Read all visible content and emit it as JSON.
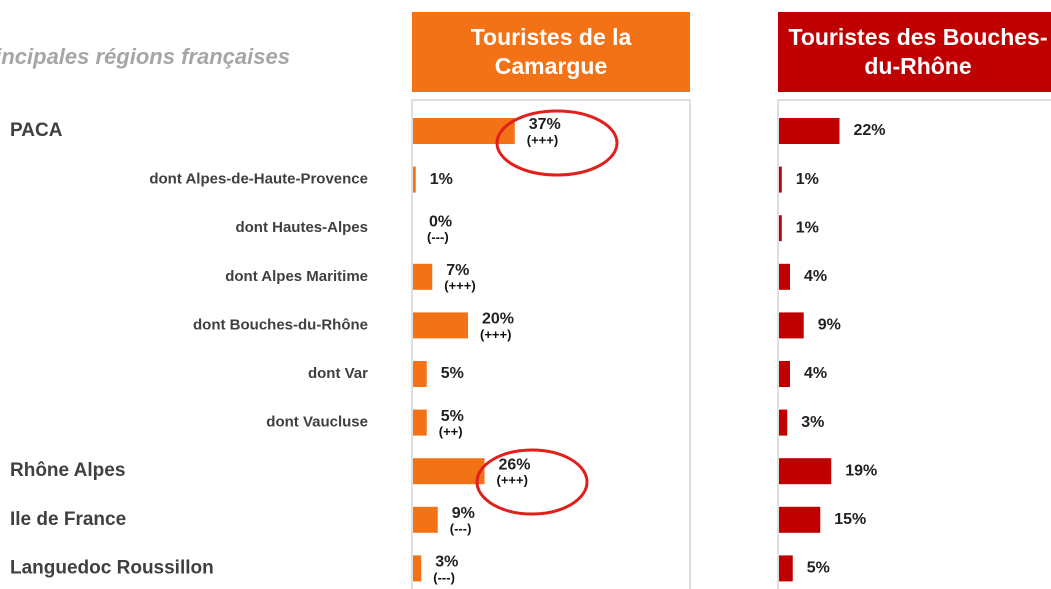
{
  "chart_data": {
    "type": "bar",
    "orientation": "horizontal",
    "title": "Principales régions françaises",
    "categories": [
      "PACA",
      "dont Alpes-de-Haute-Provence",
      "dont Hautes-Alpes",
      "dont Alpes Maritime",
      "dont Bouches-du-Rhône",
      "dont Var",
      "dont Vaucluse",
      "Rhône Alpes",
      "Ile de France",
      "Languedoc Roussillon"
    ],
    "series": [
      {
        "name": "Touristes de la Camargue",
        "color": "#f47216",
        "values": [
          37,
          1,
          0,
          7,
          20,
          5,
          5,
          26,
          9,
          3
        ],
        "value_labels": [
          "37%",
          "1%",
          "0%",
          "7%",
          "20%",
          "5%",
          "5%",
          "26%",
          "9%",
          "3%"
        ],
        "annotations": [
          "(+++)",
          null,
          "(---)",
          "(+++)",
          "(+++)",
          null,
          "(++)",
          "(+++)",
          "(---)",
          "(---)"
        ]
      },
      {
        "name": "Touristes des Bouches-du-Rhône",
        "color": "#c00000",
        "values": [
          22,
          1,
          1,
          4,
          9,
          4,
          3,
          19,
          15,
          5
        ],
        "value_labels": [
          "22%",
          "1%",
          "1%",
          "4%",
          "9%",
          "4%",
          "3%",
          "19%",
          "15%",
          "5%"
        ]
      }
    ]
  }
}
